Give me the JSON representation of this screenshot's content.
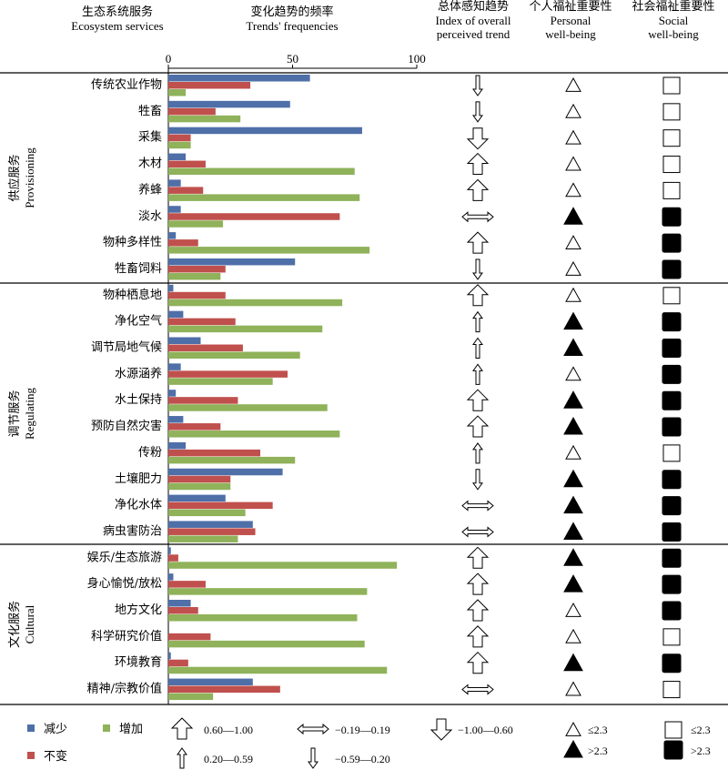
{
  "headers": {
    "services_cn": "生态系统服务",
    "services_en": "Ecosystem services",
    "freq_cn": "变化趋势的频率",
    "freq_en": "Trends' frequencies",
    "trend_cn": "总体感知趋势",
    "trend_en1": "Index of overall",
    "trend_en2": "perceived trend",
    "personal_cn": "个人福祉重要性",
    "personal_en1": "Personal",
    "personal_en2": "well-being",
    "social_cn": "社会福祉重要性",
    "social_en1": "Social",
    "social_en2": "well-being"
  },
  "groups": [
    {
      "cn": "供应服务",
      "en": "Provisioning"
    },
    {
      "cn": "调节服务",
      "en": "Regulating"
    },
    {
      "cn": "文化服务",
      "en": "Cultural"
    }
  ],
  "chart_data": {
    "type": "bar",
    "orientation": "horizontal",
    "xlim": [
      0,
      100
    ],
    "xticks": [
      "0",
      "50",
      "100"
    ],
    "series_colors": {
      "decrease": "#4f6fa8",
      "unchanged": "#c0504d",
      "increase": "#8fb25a"
    },
    "categories": [
      "传统农业作物",
      "牲畜",
      "采集",
      "木材",
      "养蜂",
      "淡水",
      "物种多样性",
      "牲畜饲料",
      "物种栖息地",
      "净化空气",
      "调节局地气候",
      "水源涵养",
      "水土保持",
      "预防自然灾害",
      "传粉",
      "土壤肥力",
      "净化水体",
      "病虫害防治",
      "娱乐/生态旅游",
      "身心愉悦/放松",
      "地方文化",
      "科学研究价值",
      "环境教育",
      "精神/宗教价值"
    ],
    "group_index": [
      0,
      0,
      0,
      0,
      0,
      0,
      0,
      0,
      1,
      1,
      1,
      1,
      1,
      1,
      1,
      1,
      1,
      1,
      2,
      2,
      2,
      2,
      2,
      2
    ],
    "series": [
      {
        "name": "减少",
        "key": "decrease",
        "values": [
          57,
          49,
          78,
          7,
          5,
          5,
          3,
          51,
          2,
          6,
          13,
          5,
          3,
          6,
          7,
          46,
          23,
          34,
          1,
          2,
          9,
          0,
          1,
          34
        ]
      },
      {
        "name": "不变",
        "key": "unchanged",
        "values": [
          33,
          19,
          9,
          15,
          14,
          69,
          12,
          23,
          23,
          27,
          30,
          48,
          28,
          21,
          37,
          25,
          42,
          35,
          4,
          15,
          12,
          17,
          8,
          45
        ]
      },
      {
        "name": "增加",
        "key": "increase",
        "values": [
          7,
          29,
          9,
          75,
          77,
          22,
          81,
          21,
          70,
          62,
          53,
          42,
          64,
          69,
          51,
          25,
          31,
          28,
          92,
          80,
          76,
          79,
          88,
          18
        ]
      }
    ],
    "trend": [
      "down-small",
      "down-small",
      "down-large",
      "up-large",
      "up-large",
      "neutral",
      "up-large",
      "down-small",
      "up-large",
      "up-small",
      "up-small",
      "up-small",
      "up-large",
      "up-large",
      "up-small",
      "down-small",
      "neutral",
      "neutral",
      "up-large",
      "up-large",
      "up-large",
      "up-large",
      "up-large",
      "neutral"
    ],
    "personal_high": [
      false,
      false,
      false,
      false,
      false,
      true,
      false,
      false,
      false,
      true,
      true,
      false,
      true,
      true,
      false,
      true,
      true,
      true,
      true,
      true,
      false,
      false,
      true,
      false
    ],
    "social_high": [
      false,
      false,
      false,
      false,
      false,
      true,
      true,
      true,
      false,
      true,
      true,
      true,
      true,
      true,
      false,
      true,
      true,
      true,
      true,
      true,
      true,
      false,
      true,
      false
    ]
  },
  "legend": {
    "decrease": "减少",
    "increase": "增加",
    "unchanged": "不变",
    "trend_up_large": "0.60—1.00",
    "trend_neutral": "−0.19—0.19",
    "trend_down_large": "−1.00—0.60",
    "trend_up_small": "0.20—0.59",
    "trend_down_small": "−0.59—0.20",
    "tri_low": "≤2.3",
    "tri_high": ">2.3",
    "sq_low": "≤2.3",
    "sq_high": ">2.3"
  }
}
